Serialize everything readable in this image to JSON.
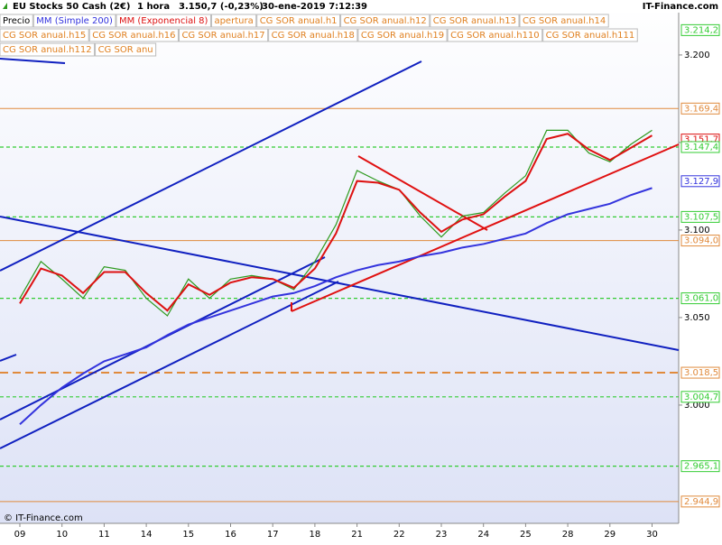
{
  "header": {
    "instrument": "EU Stocks 50 Cash (2€)",
    "timeframe": "1 hora",
    "quote": "3.150,7 (-0,23%)",
    "timestamp": "30-ene-2019 7:12:39",
    "brand": "IT-Finance.com"
  },
  "footer": "© IT-Finance.com",
  "chart_data": {
    "type": "line",
    "categories": [
      "09",
      null,
      "10",
      null,
      "11",
      null,
      "14",
      null,
      "15",
      null,
      "16",
      null,
      "17",
      null,
      "18",
      null,
      "21",
      null,
      "22",
      null,
      "23",
      null,
      "24",
      null,
      "25",
      null,
      "28",
      null,
      "29",
      null,
      "30",
      null
    ],
    "series": [
      {
        "name": "Precio",
        "color": "#2e9a1e",
        "values": [
          3061,
          3082,
          3072,
          3061,
          3079,
          3077,
          3061,
          3051,
          3072,
          3061,
          3072,
          3074,
          3072,
          3066,
          3082,
          3103,
          3134,
          3128,
          3123,
          3108,
          3096,
          3108,
          3110,
          3121,
          3131,
          3157,
          3157,
          3144,
          3139,
          3149,
          3157,
          null
        ]
      },
      {
        "name": "MM (Simple 200)",
        "color": "#3333dd",
        "values": [
          2989,
          3000,
          3010,
          3018,
          3025,
          3029,
          3033,
          3040,
          3046,
          3050,
          3054,
          3058,
          3062,
          3064,
          3068,
          3073,
          3077,
          3080,
          3082,
          3085,
          3087,
          3090,
          3092,
          3095,
          3098,
          3104,
          3109,
          3112,
          3115,
          3120,
          3124,
          null
        ]
      },
      {
        "name": "MM (Exponencial 8)",
        "color": "#dd1111",
        "values": [
          3058,
          3078,
          3074,
          3064,
          3076,
          3076,
          3064,
          3054,
          3069,
          3063,
          3070,
          3073,
          3072,
          3067,
          3078,
          3098,
          3128,
          3127,
          3123,
          3110,
          3099,
          3106,
          3109,
          3119,
          3128,
          3152,
          3155,
          3146,
          3140,
          3147,
          3154,
          null
        ]
      }
    ],
    "legend_extra": [
      "apertura",
      "CG SOR anual.h1",
      "CG SOR anual.h12",
      "CG SOR anual.h13",
      "CG SOR anual.h14",
      "CG SOR anual.h15",
      "CG SOR anual.h16",
      "CG SOR anual.h17",
      "CG SOR anual.h18",
      "CG SOR anual.h19",
      "CG SOR anual.h110",
      "CG SOR anual.h111",
      "CG SOR anual.h112",
      "CG SOR anu"
    ],
    "legend_extra_color": "#e08020",
    "ylim": [
      2937.6,
      3231.4
    ],
    "yticks": [
      {
        "value": 3000,
        "label": "3.000"
      },
      {
        "value": 3050,
        "label": "3.050"
      },
      {
        "value": 3100,
        "label": "3.100"
      },
      {
        "value": 3150,
        "label": "3.150"
      },
      {
        "value": 3200,
        "label": "3.200"
      }
    ],
    "levels": [
      {
        "value": 3214.2,
        "label": "3.214,2",
        "color": "#33cc33",
        "line": "none"
      },
      {
        "value": 3169.4,
        "label": "3.169,4",
        "color": "#e08a3c",
        "line": "solid"
      },
      {
        "value": 3151.7,
        "label": "3.151,7",
        "color": "#dd1111",
        "line": "none"
      },
      {
        "value": 3147.4,
        "label": "3.147,4",
        "color": "#33cc33",
        "line": "dashed"
      },
      {
        "value": 3127.9,
        "label": "3.127,9",
        "color": "#3333dd",
        "line": "none"
      },
      {
        "value": 3107.5,
        "label": "3.107,5",
        "color": "#33cc33",
        "line": "dashed"
      },
      {
        "value": 3094.0,
        "label": "3.094,0",
        "color": "#e08a3c",
        "line": "solid"
      },
      {
        "value": 3061.0,
        "label": "3.061,0",
        "color": "#33cc33",
        "line": "dashed"
      },
      {
        "value": 3018.5,
        "label": "3.018,5",
        "color": "#e08a3c",
        "line": "thick-dashed"
      },
      {
        "value": 3004.7,
        "label": "3.004,7",
        "color": "#33cc33",
        "line": "dashed"
      },
      {
        "value": 2965.1,
        "label": "2.965,1",
        "color": "#33cc33",
        "line": "dashed"
      },
      {
        "value": 2944.9,
        "label": "2.944,9",
        "color": "#e08a3c",
        "line": "solid"
      }
    ]
  }
}
